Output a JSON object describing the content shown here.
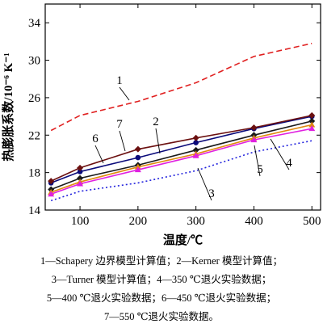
{
  "chart_data": {
    "type": "line",
    "xlabel": "温度/℃",
    "ylabel": "热膨胀系数/10⁻⁶ K⁻¹",
    "xlim": [
      40,
      515
    ],
    "ylim": [
      14,
      36
    ],
    "xticks": [
      100,
      200,
      300,
      400,
      500
    ],
    "yticks": [
      14,
      18,
      22,
      26,
      30,
      34
    ],
    "grid": false,
    "x": [
      50,
      100,
      200,
      300,
      400,
      500
    ],
    "series": [
      {
        "name": "1",
        "color": "#e02020",
        "dash": "7,4",
        "marker": "none",
        "values": [
          22.5,
          24.1,
          25.6,
          27.6,
          30.4,
          31.8
        ]
      },
      {
        "name": "2",
        "color": "#0a0a7a",
        "dash": "",
        "marker": "circle",
        "values": [
          16.9,
          18.1,
          19.6,
          21.2,
          22.7,
          24.0
        ]
      },
      {
        "name": "3",
        "color": "#2222dd",
        "dash": "2,3",
        "marker": "none",
        "values": [
          15.0,
          16.0,
          16.9,
          18.2,
          20.2,
          21.4
        ]
      },
      {
        "name": "4",
        "color": "#1a1a1a",
        "dash": "",
        "marker": "diamond",
        "values": [
          16.2,
          17.4,
          18.8,
          20.4,
          22.0,
          23.5
        ]
      },
      {
        "name": "5",
        "color": "#e08a10",
        "dash": "",
        "marker": "triangle",
        "values": [
          15.9,
          17.0,
          18.6,
          20.0,
          21.7,
          23.1
        ]
      },
      {
        "name": "6",
        "color": "#e020e0",
        "dash": "",
        "marker": "triangle",
        "values": [
          15.7,
          16.8,
          18.3,
          19.8,
          21.5,
          22.7
        ]
      },
      {
        "name": "7",
        "color": "#6b1010",
        "dash": "",
        "marker": "diamond",
        "values": [
          17.1,
          18.5,
          20.5,
          21.7,
          22.8,
          24.1
        ]
      }
    ],
    "annotations": [
      "1",
      "2",
      "3",
      "4",
      "5",
      "6",
      "7"
    ]
  },
  "legend": {
    "line1": "1—Schapery 边界模型计算值；2—Kerner 模型计算值；",
    "line2": "3—Turner 模型计算值；4—350 ℃退火实验数据；",
    "line3": "5—400 ℃退火实验数据；6—450 ℃退火实验数据；",
    "line4": "7—550 ℃退火实验数据。"
  }
}
